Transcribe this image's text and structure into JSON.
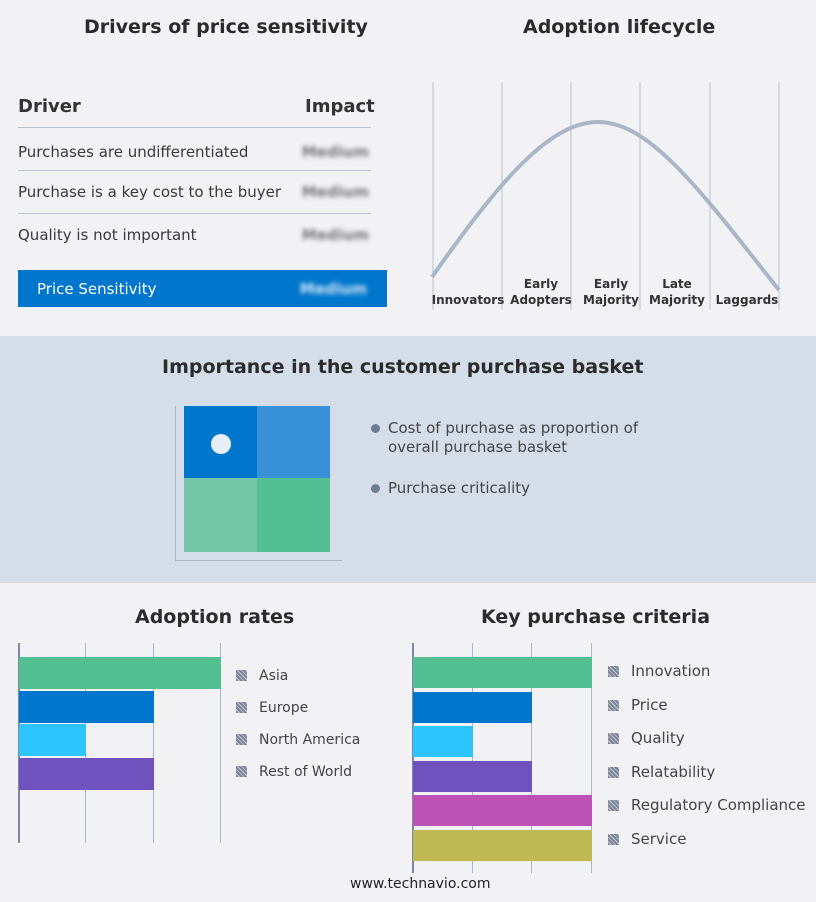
{
  "drivers": {
    "title": "Drivers of price sensitivity",
    "col_driver": "Driver",
    "col_impact": "Impact",
    "rows": [
      {
        "driver": "Purchases are undifferentiated",
        "impact": "Medium"
      },
      {
        "driver": "Purchase is a key cost to the buyer",
        "impact": "Medium"
      },
      {
        "driver": "Quality is not important",
        "impact": "Medium"
      }
    ],
    "summary": {
      "label": "Price Sensitivity",
      "impact": "Medium"
    }
  },
  "lifecycle": {
    "title": "Adoption lifecycle",
    "stages": [
      [
        "Innovators"
      ],
      [
        "Early",
        "Adopters"
      ],
      [
        "Early",
        "Majority"
      ],
      [
        "Late",
        "Majority"
      ],
      [
        "Laggards"
      ]
    ]
  },
  "basket": {
    "title": "Importance in the customer purchase basket",
    "legend": [
      "Cost of purchase as proportion of overall purchase basket",
      "Purchase criticality"
    ]
  },
  "chart_data": [
    {
      "type": "bar",
      "title": "Adoption rates",
      "orientation": "horizontal",
      "categories": [
        "Asia",
        "Europe",
        "North America",
        "Rest of World"
      ],
      "values": [
        3,
        2,
        1,
        2
      ],
      "xlim": [
        0,
        3
      ],
      "colors": [
        "#52be92",
        "#0077cc",
        "#2ec4ff",
        "#6f52bd"
      ],
      "grid": true,
      "legend": "right"
    },
    {
      "type": "bar",
      "title": "Key purchase criteria",
      "orientation": "horizontal",
      "categories": [
        "Innovation",
        "Price",
        "Quality",
        "Relatability",
        "Regulatory Compliance",
        "Service"
      ],
      "values": [
        3,
        2,
        1,
        2,
        3,
        3
      ],
      "xlim": [
        0,
        3
      ],
      "colors": [
        "#52be92",
        "#0077cc",
        "#2ec4ff",
        "#6f52bd",
        "#bd52b5",
        "#bfb954"
      ],
      "grid": true,
      "legend": "right"
    }
  ],
  "footer": "www.technavio.com"
}
